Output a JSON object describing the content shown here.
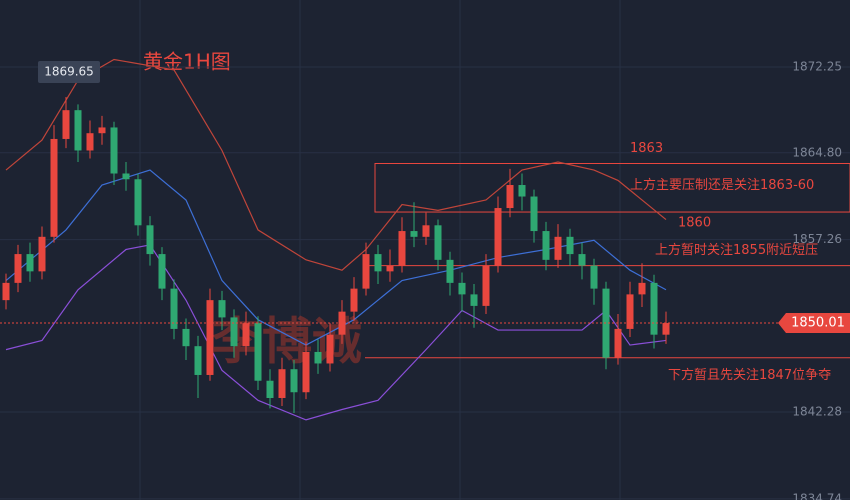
{
  "chart_data": {
    "type": "candlestick",
    "title": "黄金1H图",
    "watermark": "李博诚",
    "ylim": [
      1834.64,
      1878.07
    ],
    "yticks": [
      1872.25,
      {
        "value": 1864.8,
        "label": "1864.80"
      },
      1857.26,
      1842.28,
      1834.74
    ],
    "up_color": "#e8473f",
    "down_color": "#2fa872",
    "open": [
      1852.0,
      1853.5,
      1856.0,
      1854.5,
      1857.5,
      1866.0,
      1868.5,
      1865.0,
      1866.5,
      1867.0,
      1863.0,
      1862.5,
      1858.5,
      1856.0,
      1853.0,
      1849.5,
      1848.0,
      1845.5,
      1852.0,
      1850.5,
      1848.0,
      1850.0,
      1845.0,
      1843.5,
      1846.0,
      1844.0,
      1847.5,
      1846.5,
      1849.0,
      1851.0,
      1853.0,
      1856.0,
      1854.5,
      1855.0,
      1858.0,
      1857.5,
      1858.5,
      1855.5,
      1853.5,
      1852.5,
      1851.5,
      1855.0,
      1860.0,
      1862.0,
      1861.0,
      1858.0,
      1855.5,
      1857.5,
      1856.0,
      1855.0,
      1853.0,
      1847.0,
      1849.5,
      1852.5,
      1853.5,
      1849.0
    ],
    "high": [
      1854.3,
      1856.8,
      1857.0,
      1858.4,
      1867.2,
      1869.65,
      1869.0,
      1867.6,
      1868.0,
      1867.5,
      1864.0,
      1863.0,
      1859.3,
      1856.6,
      1853.8,
      1850.4,
      1848.9,
      1853.0,
      1852.8,
      1851.2,
      1851.0,
      1850.6,
      1846.0,
      1847.0,
      1846.8,
      1848.4,
      1848.6,
      1850.0,
      1852.0,
      1854.0,
      1857.0,
      1856.8,
      1856.4,
      1859.2,
      1860.5,
      1859.6,
      1859.0,
      1856.2,
      1854.4,
      1853.4,
      1856.0,
      1861.0,
      1863.4,
      1863.0,
      1861.6,
      1858.8,
      1858.6,
      1858.2,
      1857.0,
      1855.6,
      1853.6,
      1850.8,
      1853.6,
      1855.2,
      1854.2,
      1851.0
    ],
    "low": [
      1851.2,
      1852.7,
      1853.6,
      1853.8,
      1857.0,
      1865.2,
      1864.0,
      1864.3,
      1865.5,
      1862.0,
      1861.5,
      1857.6,
      1855.0,
      1852.0,
      1848.6,
      1846.8,
      1843.5,
      1845.0,
      1849.4,
      1847.0,
      1847.2,
      1844.2,
      1842.6,
      1842.8,
      1842.2,
      1843.4,
      1845.6,
      1845.8,
      1848.2,
      1850.2,
      1852.4,
      1853.4,
      1853.6,
      1854.4,
      1856.6,
      1856.8,
      1854.6,
      1852.4,
      1851.0,
      1849.6,
      1850.8,
      1854.4,
      1859.2,
      1859.8,
      1857.0,
      1854.6,
      1854.8,
      1855.0,
      1853.8,
      1851.6,
      1846.0,
      1846.4,
      1848.8,
      1851.4,
      1847.8,
      1848.2
    ],
    "close": [
      1853.5,
      1856.0,
      1854.5,
      1857.5,
      1866.0,
      1868.5,
      1865.0,
      1866.5,
      1867.0,
      1863.0,
      1862.5,
      1858.5,
      1856.0,
      1853.0,
      1849.5,
      1848.0,
      1845.5,
      1852.0,
      1850.5,
      1848.0,
      1850.0,
      1845.0,
      1843.5,
      1846.0,
      1844.0,
      1847.5,
      1846.5,
      1849.0,
      1851.0,
      1853.0,
      1856.0,
      1854.5,
      1855.0,
      1858.0,
      1857.5,
      1858.5,
      1855.5,
      1853.5,
      1852.5,
      1851.5,
      1855.0,
      1860.0,
      1862.0,
      1861.0,
      1858.0,
      1855.5,
      1857.5,
      1856.0,
      1855.0,
      1853.0,
      1847.0,
      1849.5,
      1852.5,
      1853.5,
      1849.0,
      1850.01
    ],
    "bands": [
      {
        "color": "#c0453a",
        "x": [
          0,
          3,
          6,
          9,
          14,
          18,
          21,
          25,
          28,
          30,
          33,
          36,
          40,
          43,
          46,
          49,
          51,
          55
        ],
        "values": [
          1863.3,
          1865.9,
          1871.1,
          1872.9,
          1872.0,
          1865.0,
          1858.1,
          1855.5,
          1854.6,
          1856.4,
          1860.3,
          1859.8,
          1860.7,
          1863.3,
          1864.0,
          1863.3,
          1862.4,
          1859.0
        ]
      },
      {
        "color": "#3d6fd6",
        "x": [
          0,
          5,
          8,
          12,
          15,
          18,
          21,
          25,
          29,
          33,
          37,
          41,
          45,
          49,
          52,
          55
        ],
        "values": [
          1853.7,
          1858.1,
          1862.0,
          1863.3,
          1860.7,
          1853.7,
          1850.3,
          1848.1,
          1850.3,
          1853.7,
          1854.6,
          1855.7,
          1856.4,
          1857.2,
          1854.6,
          1852.9
        ]
      },
      {
        "color": "#8a4fd8",
        "x": [
          0,
          3,
          6,
          10,
          12,
          15,
          18,
          21,
          25,
          28,
          31,
          35,
          38,
          41,
          45,
          48,
          50,
          52,
          55
        ],
        "values": [
          1847.7,
          1848.5,
          1852.9,
          1856.4,
          1856.8,
          1852.0,
          1845.9,
          1843.3,
          1841.6,
          1842.5,
          1843.3,
          1847.7,
          1851.1,
          1849.4,
          1849.4,
          1849.4,
          1851.1,
          1848.1,
          1848.5
        ]
      }
    ],
    "zone": {
      "top": 1863,
      "bottom": 1860,
      "text": "上方主要压制还是关注1863-60"
    },
    "levels": [
      {
        "value": 1855,
        "text": "上方暂时关注1855附近短压"
      },
      {
        "value": 1847,
        "text": "下方暂且先关注1847位争夺"
      }
    ]
  }
}
